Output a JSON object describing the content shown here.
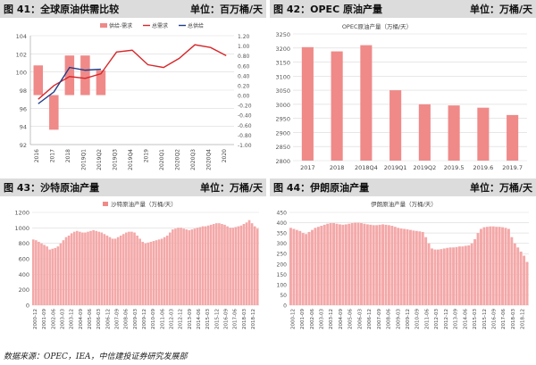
{
  "source": "数据来源：OPEC，IEA，中信建投证券研究发展部",
  "colors": {
    "bar": "#ef8a89",
    "bar_line": "#f4a8a8",
    "red": "#d6282b",
    "blue": "#1f3c88",
    "grid": "#d9d9d9",
    "header": "#dcdcdc"
  },
  "chart_data": [
    {
      "type": "bar",
      "figure_title": "图 41：全球原油供需比较",
      "unit": "单位：百万桶/天",
      "legend": [
        "供给-需求",
        "总需求",
        "总供给"
      ],
      "categories": [
        "2016",
        "2017",
        "2018",
        "2019Q1",
        "2019Q2",
        "2019Q3",
        "2019Q4",
        "2019",
        "2020Q1",
        "2020Q2",
        "2020Q3",
        "2020Q4",
        "2020"
      ],
      "yticks_left": [
        92,
        94,
        96,
        98,
        100,
        102,
        104
      ],
      "ylim_left": [
        92,
        104
      ],
      "yticks_right": [
        "-1.00",
        "-0.80",
        "-0.60",
        "-0.40",
        "-0.20",
        "0.00",
        "0.20",
        "0.40",
        "0.60",
        "0.80",
        "1.00",
        "1.20"
      ],
      "ylim_right": [
        -1.0,
        1.2
      ],
      "series": [
        {
          "name": "供给-需求",
          "axis": "right",
          "values": [
            0.6,
            -0.7,
            0.8,
            0.8,
            0.5,
            null,
            null,
            null,
            null,
            null,
            null,
            null,
            null
          ]
        },
        {
          "name": "总需求",
          "axis": "left",
          "values": [
            97.0,
            98.5,
            99.5,
            99.3,
            99.8,
            102.2,
            102.4,
            100.8,
            100.5,
            101.5,
            103.0,
            102.7,
            101.8
          ]
        },
        {
          "name": "总供给",
          "axis": "left",
          "values": [
            96.5,
            97.8,
            100.5,
            100.2,
            100.3,
            null,
            null,
            null,
            null,
            null,
            null,
            null,
            null
          ]
        }
      ]
    },
    {
      "type": "bar",
      "figure_title": "图 42：OPEC 原油产量",
      "unit": "单位：万桶/天",
      "title": "OPEC原油产量（万桶/天）",
      "categories": [
        "2017",
        "2018",
        "2018Q4",
        "2019Q1",
        "2019Q2",
        "2019.5",
        "2019.6",
        "2019.7"
      ],
      "values": [
        3203,
        3188,
        3210,
        3050,
        3000,
        2996,
        2988,
        2962
      ],
      "yticks": [
        2800,
        2850,
        2900,
        2950,
        3000,
        3050,
        3100,
        3150,
        3200,
        3250
      ],
      "ylim": [
        2800,
        3250
      ]
    },
    {
      "type": "bar",
      "figure_title": "图 43：沙特原油产量",
      "unit": "单位：万桶/天",
      "legend": [
        "沙特原油产量（万桶/天）"
      ],
      "x_tick_labels": [
        "2000-12",
        "2001-09",
        "2002-06",
        "2003-03",
        "2003-12",
        "2004-09",
        "2005-06",
        "2006-03",
        "2006-12",
        "2007-09",
        "2008-06",
        "2009-03",
        "2009-12",
        "2010-09",
        "2011-06",
        "2012-03",
        "2012-12",
        "2013-09",
        "2014-06",
        "2015-03",
        "2015-12",
        "2016-09",
        "2017-06",
        "2018-03",
        "2018-12"
      ],
      "values": [
        850,
        840,
        820,
        800,
        780,
        760,
        720,
        730,
        740,
        760,
        800,
        840,
        880,
        900,
        930,
        950,
        960,
        950,
        940,
        940,
        950,
        960,
        970,
        960,
        950,
        940,
        920,
        900,
        880,
        860,
        860,
        880,
        900,
        920,
        940,
        950,
        950,
        940,
        900,
        860,
        820,
        800,
        810,
        820,
        830,
        840,
        850,
        860,
        880,
        900,
        940,
        980,
        990,
        1000,
        1000,
        990,
        980,
        970,
        980,
        990,
        1000,
        1010,
        1020,
        1020,
        1030,
        1040,
        1050,
        1060,
        1060,
        1050,
        1040,
        1020,
        1000,
        1000,
        1010,
        1020,
        1030,
        1050,
        1070,
        1100,
        1060,
        1020,
        990
      ],
      "yticks": [
        0,
        200,
        400,
        600,
        800,
        1000,
        1200
      ],
      "ylim": [
        0,
        1200
      ]
    },
    {
      "type": "bar",
      "figure_title": "图 44：伊朗原油产量",
      "unit": "单位：万桶/天",
      "title": "伊朗原油产量（万桶/天）",
      "x_tick_labels": [
        "2000-12",
        "2001-09",
        "2002-06",
        "2003-03",
        "2003-12",
        "2004-09",
        "2005-06",
        "2006-03",
        "2006-12",
        "2007-09",
        "2008-06",
        "2009-03",
        "2009-12",
        "2010-09",
        "2011-06",
        "2012-03",
        "2012-12",
        "2013-09",
        "2014-06",
        "2015-03",
        "2015-12",
        "2016-09",
        "2017-06",
        "2018-03",
        "2018-12"
      ],
      "values": [
        375,
        370,
        365,
        360,
        350,
        345,
        355,
        365,
        375,
        380,
        385,
        390,
        395,
        398,
        398,
        395,
        392,
        390,
        392,
        395,
        398,
        400,
        400,
        398,
        395,
        392,
        390,
        388,
        388,
        390,
        392,
        390,
        388,
        385,
        380,
        375,
        372,
        370,
        368,
        365,
        362,
        360,
        358,
        355,
        330,
        300,
        275,
        270,
        270,
        272,
        275,
        278,
        280,
        280,
        282,
        285,
        285,
        288,
        290,
        300,
        320,
        350,
        370,
        378,
        380,
        382,
        382,
        380,
        380,
        378,
        375,
        370,
        330,
        300,
        280,
        260,
        240,
        210
      ],
      "yticks": [
        0,
        50,
        100,
        150,
        200,
        250,
        300,
        350,
        400,
        450
      ],
      "ylim": [
        0,
        450
      ]
    }
  ]
}
